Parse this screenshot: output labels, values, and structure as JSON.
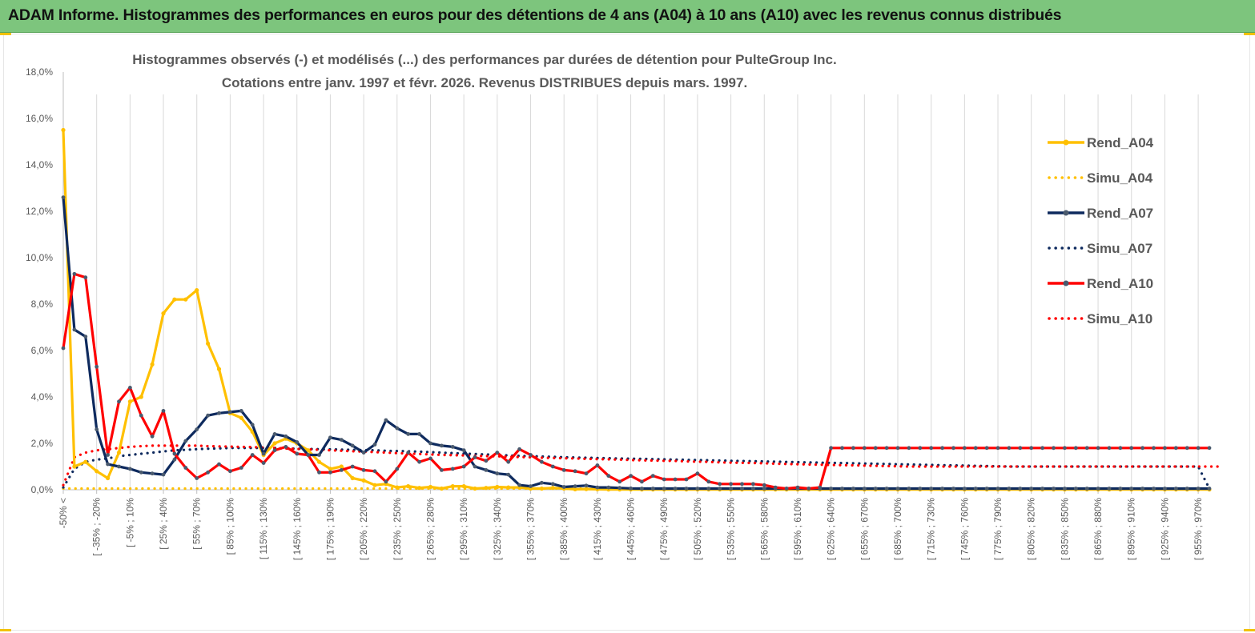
{
  "banner": {
    "title": "ADAM Informe. Histogrammes des performances en euros pour des détentions de 4 ans (A04) à 10 ans (A10) avec les revenus connus distribués"
  },
  "colors": {
    "banner_bg": "#7dc57d",
    "A04": "#ffc000",
    "A07": "#0e2a5e",
    "A10": "#ff0000",
    "grid": "#d9d9d9",
    "text": "#595959"
  },
  "chart_data": {
    "type": "line",
    "title_line1": "Histogrammes observés (-) et modélisés (...)  des performances par durées de détention pour PulteGroup Inc.",
    "title_line2": "Cotations entre janv. 1997 et févr. 2026. Revenus DISTRIBUES depuis mars. 1997.",
    "xlabel": "",
    "ylabel": "",
    "ylim": [
      0,
      18
    ],
    "y_ticks": [
      "0,0%",
      "2,0%",
      "4,0%",
      "6,0%",
      "8,0%",
      "10,0%",
      "12,0%",
      "14,0%",
      "16,0%",
      "18,0%"
    ],
    "grid": "vertical",
    "legend_position": "right",
    "n_points": 104,
    "x_labels": [
      {
        "i": 0,
        "label": "-50% <"
      },
      {
        "i": 1,
        "label": "[ -35% ; -20%"
      },
      {
        "i": 2,
        "label": "[ -5% ; 10%"
      },
      {
        "i": 3,
        "label": "[ 25% ; 40%"
      },
      {
        "i": 4,
        "label": "[ 55% ; 70%"
      },
      {
        "i": 5,
        "label": "[ 85% ; 100%"
      },
      {
        "i": 6,
        "label": "[ 115% ; 130%"
      },
      {
        "i": 7,
        "label": "[ 145% ; 160%"
      },
      {
        "i": 8,
        "label": "[ 175% ; 190%"
      },
      {
        "i": 9,
        "label": "[ 205% ; 220%"
      },
      {
        "i": 10,
        "label": "[ 235% ; 250%"
      },
      {
        "i": 11,
        "label": "[ 265% ; 280%"
      },
      {
        "i": 12,
        "label": "[ 295% ; 310%"
      },
      {
        "i": 13,
        "label": "[ 325% ; 340%"
      },
      {
        "i": 14,
        "label": "[ 355% ; 370%"
      },
      {
        "i": 15,
        "label": "[ 385% ; 400%"
      },
      {
        "i": 16,
        "label": "[ 415% ; 430%"
      },
      {
        "i": 17,
        "label": "[ 445% ; 460%"
      },
      {
        "i": 18,
        "label": "[ 475% ; 490%"
      },
      {
        "i": 19,
        "label": "[ 505% ; 520%"
      },
      {
        "i": 20,
        "label": "[ 535% ; 550%"
      },
      {
        "i": 21,
        "label": "[ 565% ; 580%"
      },
      {
        "i": 22,
        "label": "[ 595% ; 610%"
      },
      {
        "i": 23,
        "label": "[ 625% ; 640%"
      },
      {
        "i": 24,
        "label": "[ 655% ; 670%"
      },
      {
        "i": 25,
        "label": "[ 685% ; 700%"
      },
      {
        "i": 26,
        "label": "[ 715% ; 730%"
      },
      {
        "i": 27,
        "label": "[ 745% ; 760%"
      },
      {
        "i": 28,
        "label": "[ 775% ; 790%"
      },
      {
        "i": 29,
        "label": "[ 805% ; 820%"
      },
      {
        "i": 30,
        "label": "[ 835% ; 850%"
      },
      {
        "i": 31,
        "label": "[ 865% ; 880%"
      },
      {
        "i": 32,
        "label": "[ 895% ; 910%"
      },
      {
        "i": 33,
        "label": "[ 925% ; 940%"
      },
      {
        "i": 34,
        "label": "[ 955% ; 970%"
      }
    ],
    "series": [
      {
        "name": "Rend_A04",
        "color": "#ffc000",
        "style": "solid",
        "values": [
          15.5,
          1.0,
          1.2,
          0.8,
          0.5,
          1.6,
          3.8,
          4.0,
          5.4,
          7.6,
          8.2,
          8.2,
          8.6,
          6.3,
          5.2,
          3.3,
          3.1,
          2.5,
          1.5,
          2.0,
          2.2,
          2.0,
          1.7,
          1.2,
          0.9,
          1.0,
          0.5,
          0.4,
          0.2,
          0.25,
          0.1,
          0.15,
          0.08,
          0.12,
          0.05,
          0.15,
          0.15,
          0.05,
          0.08,
          0.12,
          0.1,
          0.1,
          0.05,
          0.05,
          0.08,
          0.05,
          0.02,
          0.03,
          0.02,
          0.01,
          0.01,
          0.01,
          0.01,
          0.01,
          0.01,
          0.01,
          0.01,
          0.01,
          0.01,
          0.01,
          0.01,
          0.01,
          0.01,
          0.01,
          0.01,
          0.01,
          0.01,
          0.01,
          0.01,
          0.01,
          0.01,
          0.01,
          0.01,
          0.01,
          0.01,
          0.01,
          0.01,
          0.01,
          0.01,
          0.01,
          0.01,
          0.01,
          0.01,
          0.01,
          0.01,
          0.01,
          0.01,
          0.01,
          0.01,
          0.01,
          0.01,
          0.01,
          0.01,
          0.01,
          0.01,
          0.01,
          0.01,
          0.01,
          0.01,
          0.01,
          0.01,
          0.01,
          0.01,
          0.01
        ]
      },
      {
        "name": "Simu_A04",
        "color": "#ffc000",
        "style": "dotted",
        "values": [
          0.05,
          0.05,
          0.05,
          0.05,
          0.05,
          0.05,
          0.05,
          0.05,
          0.05,
          0.05,
          0.05,
          0.05,
          0.05,
          0.05,
          0.05,
          0.05,
          0.05,
          0.05,
          0.05,
          0.05,
          0.05,
          0.05,
          0.05,
          0.05,
          0.05,
          0.05,
          0.05,
          0.05,
          0.05,
          0.05,
          0.05,
          0.05,
          0.05,
          0.05,
          0.05,
          0.05,
          0.05,
          0.05,
          0.05,
          0.05,
          0.05,
          0.05,
          0.05,
          0.05,
          0.05,
          0.05,
          0.05,
          0.05,
          0.05,
          0.05,
          0.05,
          0.05,
          0.05,
          0.05,
          0.05,
          0.05,
          0.05,
          0.05,
          0.05,
          0.05,
          0.05,
          0.05,
          0.05,
          0.05,
          0.05,
          0.05,
          0.05,
          0.05,
          0.05,
          0.05,
          0.05,
          0.05,
          0.05,
          0.05,
          0.05,
          0.05,
          0.05,
          0.05,
          0.05,
          0.05,
          0.05,
          0.05,
          0.05,
          0.05,
          0.05,
          0.05,
          0.05,
          0.05,
          0.05,
          0.05,
          0.05,
          0.05,
          0.05,
          0.05,
          0.05,
          0.05,
          0.05,
          0.05,
          0.05,
          0.05,
          0.05,
          0.05,
          0.05,
          0.05
        ]
      },
      {
        "name": "Rend_A07",
        "color": "#0e2a5e",
        "style": "solid",
        "values": [
          12.6,
          6.9,
          6.6,
          2.6,
          1.1,
          1.0,
          0.9,
          0.75,
          0.7,
          0.65,
          1.3,
          2.1,
          2.6,
          3.2,
          3.3,
          3.35,
          3.4,
          2.8,
          1.55,
          2.4,
          2.3,
          2.05,
          1.5,
          1.5,
          2.25,
          2.15,
          1.9,
          1.6,
          1.95,
          3.0,
          2.65,
          2.4,
          2.4,
          2.0,
          1.9,
          1.85,
          1.7,
          1.0,
          0.85,
          0.7,
          0.65,
          0.2,
          0.15,
          0.3,
          0.25,
          0.12,
          0.15,
          0.18,
          0.1,
          0.1,
          0.08,
          0.06,
          0.05,
          0.05,
          0.05,
          0.05,
          0.05,
          0.05,
          0.05,
          0.05,
          0.05,
          0.05,
          0.05,
          0.05,
          0.05,
          0.05,
          0.05,
          0.05,
          0.05,
          0.05,
          0.05,
          0.05,
          0.05,
          0.05,
          0.05,
          0.05,
          0.05,
          0.05,
          0.05,
          0.05,
          0.05,
          0.05,
          0.05,
          0.05,
          0.05,
          0.05,
          0.05,
          0.05,
          0.05,
          0.05,
          0.05,
          0.05,
          0.05,
          0.05,
          0.05,
          0.05,
          0.05,
          0.05,
          0.05,
          0.05,
          0.05,
          0.05,
          0.05,
          0.05
        ]
      },
      {
        "name": "Simu_A07",
        "color": "#0e2a5e",
        "style": "dotted",
        "values": [
          0.1,
          0.9,
          1.2,
          1.3,
          1.35,
          1.45,
          1.5,
          1.55,
          1.6,
          1.65,
          1.7,
          1.72,
          1.75,
          1.77,
          1.78,
          1.8,
          1.8,
          1.8,
          1.8,
          1.8,
          1.78,
          1.77,
          1.76,
          1.75,
          1.74,
          1.73,
          1.72,
          1.71,
          1.7,
          1.68,
          1.67,
          1.66,
          1.64,
          1.62,
          1.6,
          1.58,
          1.56,
          1.54,
          1.52,
          1.5,
          1.48,
          1.46,
          1.45,
          1.43,
          1.42,
          1.4,
          1.39,
          1.38,
          1.37,
          1.36,
          1.35,
          1.34,
          1.33,
          1.32,
          1.31,
          1.3,
          1.29,
          1.28,
          1.27,
          1.26,
          1.25,
          1.24,
          1.23,
          1.22,
          1.21,
          1.2,
          1.19,
          1.18,
          1.17,
          1.16,
          1.15,
          1.14,
          1.13,
          1.12,
          1.11,
          1.1,
          1.09,
          1.08,
          1.07,
          1.06,
          1.05,
          1.04,
          1.03,
          1.02,
          1.01,
          1.0,
          1.0,
          1.0,
          1.0,
          1.0,
          1.0,
          1.0,
          1.0,
          1.0,
          1.0,
          1.0,
          1.0,
          1.0,
          1.0,
          1.0,
          1.0,
          1.0,
          1.0,
          0.05
        ]
      },
      {
        "name": "Rend_A10",
        "color": "#ff0000",
        "style": "solid",
        "values": [
          6.1,
          9.3,
          9.15,
          5.3,
          1.5,
          3.8,
          4.4,
          3.2,
          2.3,
          3.4,
          1.55,
          0.95,
          0.5,
          0.75,
          1.1,
          0.8,
          0.95,
          1.5,
          1.15,
          1.7,
          1.85,
          1.55,
          1.5,
          0.75,
          0.75,
          0.85,
          1.0,
          0.85,
          0.8,
          0.35,
          0.9,
          1.6,
          1.2,
          1.35,
          0.85,
          0.9,
          1.0,
          1.4,
          1.25,
          1.6,
          1.2,
          1.75,
          1.5,
          1.2,
          1.0,
          0.85,
          0.8,
          0.7,
          1.05,
          0.6,
          0.35,
          0.6,
          0.35,
          0.6,
          0.45,
          0.45,
          0.45,
          0.7,
          0.35,
          0.25,
          0.25,
          0.25,
          0.25,
          0.2,
          0.1,
          0.05,
          0.1,
          0.05,
          0.1,
          1.8,
          1.8,
          1.8,
          1.8,
          1.8,
          1.8,
          1.8,
          1.8,
          1.8,
          1.8,
          1.8,
          1.8,
          1.8,
          1.8,
          1.8,
          1.8,
          1.8,
          1.8,
          1.8,
          1.8,
          1.8,
          1.8,
          1.8,
          1.8,
          1.8,
          1.8,
          1.8,
          1.8,
          1.8,
          1.8,
          1.8,
          1.8,
          1.8,
          1.8,
          1.8
        ]
      },
      {
        "name": "Simu_A10",
        "color": "#ff0000",
        "style": "dotted",
        "values": [
          0.2,
          1.4,
          1.6,
          1.7,
          1.75,
          1.8,
          1.85,
          1.88,
          1.9,
          1.9,
          1.9,
          1.9,
          1.9,
          1.88,
          1.87,
          1.86,
          1.85,
          1.84,
          1.82,
          1.8,
          1.78,
          1.76,
          1.74,
          1.72,
          1.7,
          1.68,
          1.66,
          1.64,
          1.62,
          1.6,
          1.58,
          1.56,
          1.54,
          1.52,
          1.5,
          1.49,
          1.48,
          1.46,
          1.45,
          1.44,
          1.42,
          1.41,
          1.4,
          1.38,
          1.37,
          1.36,
          1.35,
          1.33,
          1.32,
          1.31,
          1.3,
          1.28,
          1.27,
          1.26,
          1.25,
          1.24,
          1.22,
          1.21,
          1.2,
          1.18,
          1.17,
          1.16,
          1.15,
          1.14,
          1.12,
          1.11,
          1.1,
          1.09,
          1.08,
          1.07,
          1.06,
          1.05,
          1.04,
          1.03,
          1.02,
          1.01,
          1.0,
          1.0,
          1.0,
          1.0,
          1.0,
          1.0,
          1.0,
          1.0,
          1.0,
          1.0,
          1.0,
          1.0,
          1.0,
          1.0,
          1.0,
          1.0,
          1.0,
          1.0,
          1.0,
          1.0,
          1.0,
          1.0,
          1.0,
          1.0,
          1.0,
          1.0,
          1.0,
          1.0,
          1.0
        ]
      }
    ]
  }
}
